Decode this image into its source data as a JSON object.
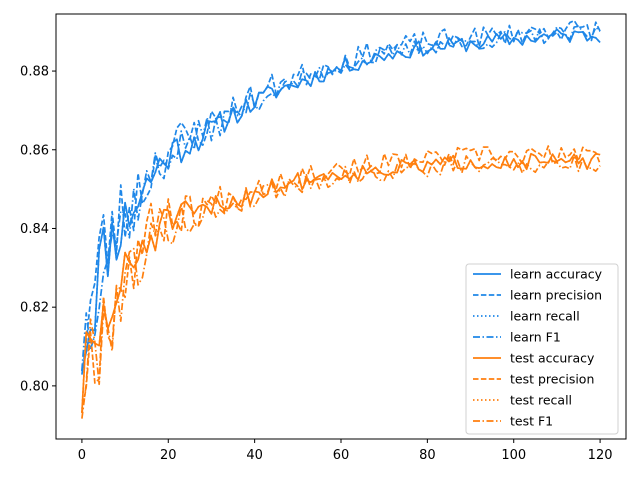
{
  "chart_data": {
    "type": "line",
    "title": "",
    "xlabel": "",
    "ylabel": "",
    "xlim": [
      -6,
      126
    ],
    "ylim": [
      0.7865,
      0.8945
    ],
    "xticks": [
      0,
      20,
      40,
      60,
      80,
      100,
      120
    ],
    "yticks": [
      0.8,
      0.82,
      0.84,
      0.86,
      0.88
    ],
    "ytick_labels": [
      "0.80",
      "0.82",
      "0.84",
      "0.86",
      "0.88"
    ],
    "legend_position": "lower-right",
    "grid": false,
    "colors": {
      "learn": "#1f87e8",
      "test": "#ff7f0e"
    },
    "anchors": {
      "learn": {
        "x": [
          0,
          2,
          4,
          6,
          8,
          10,
          12,
          14,
          16,
          18,
          20,
          25,
          30,
          35,
          40,
          45,
          50,
          55,
          60,
          70,
          80,
          90,
          100,
          110,
          120
        ],
        "y": [
          0.811,
          0.818,
          0.83,
          0.836,
          0.839,
          0.842,
          0.846,
          0.849,
          0.853,
          0.856,
          0.859,
          0.862,
          0.865,
          0.869,
          0.872,
          0.875,
          0.877,
          0.879,
          0.881,
          0.884,
          0.886,
          0.887,
          0.888,
          0.889,
          0.889
        ]
      },
      "test": {
        "x": [
          0,
          2,
          4,
          6,
          8,
          10,
          12,
          14,
          16,
          18,
          20,
          25,
          30,
          35,
          40,
          45,
          50,
          55,
          60,
          70,
          80,
          90,
          100,
          110,
          120
        ],
        "y": [
          0.8,
          0.806,
          0.813,
          0.818,
          0.822,
          0.827,
          0.831,
          0.835,
          0.838,
          0.84,
          0.842,
          0.843,
          0.845,
          0.847,
          0.849,
          0.851,
          0.852,
          0.853,
          0.854,
          0.855,
          0.856,
          0.857,
          0.857,
          0.857,
          0.857
        ]
      }
    },
    "series": [
      {
        "name": "learn accuracy",
        "group": "learn",
        "style": "solid",
        "offset": 0.0,
        "noise": 1.0,
        "seed": 11
      },
      {
        "name": "learn precision",
        "group": "learn",
        "style": "dashed",
        "offset": 0.0015,
        "noise": 1.35,
        "seed": 23
      },
      {
        "name": "learn recall",
        "group": "learn",
        "style": "dotted",
        "offset": 0.0,
        "noise": 1.0,
        "seed": 11
      },
      {
        "name": "learn F1",
        "group": "learn",
        "style": "dashdot",
        "offset": 0.0003,
        "noise": 1.05,
        "seed": 37
      },
      {
        "name": "test accuracy",
        "group": "test",
        "style": "solid",
        "offset": 0.0,
        "noise": 1.0,
        "seed": 51
      },
      {
        "name": "test precision",
        "group": "test",
        "style": "dashed",
        "offset": 0.0015,
        "noise": 1.25,
        "seed": 67
      },
      {
        "name": "test recall",
        "group": "test",
        "style": "dotted",
        "offset": 0.0,
        "noise": 1.0,
        "seed": 51
      },
      {
        "name": "test F1",
        "group": "test",
        "style": "dashdot",
        "offset": -0.0008,
        "noise": 1.15,
        "seed": 79
      }
    ]
  }
}
